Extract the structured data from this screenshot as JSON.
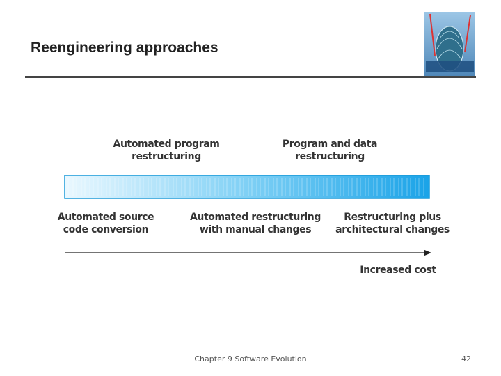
{
  "header": {
    "title": "Reengineering approaches"
  },
  "diagram": {
    "top_labels": [
      {
        "lines": [
          "Automated program",
          "restructuring"
        ]
      },
      {
        "lines": [
          "Program and data",
          "restructuring"
        ]
      }
    ],
    "bottom_labels": [
      {
        "lines": [
          "Automated source",
          "code conversion"
        ]
      },
      {
        "lines": [
          "Automated restructuring",
          "with manual changes"
        ]
      },
      {
        "lines": [
          "Restructuring plus",
          "architectural changes"
        ]
      }
    ],
    "axis_label": "Increased cost"
  },
  "footer": {
    "text": "Chapter 9 Software Evolution",
    "page": "42"
  }
}
